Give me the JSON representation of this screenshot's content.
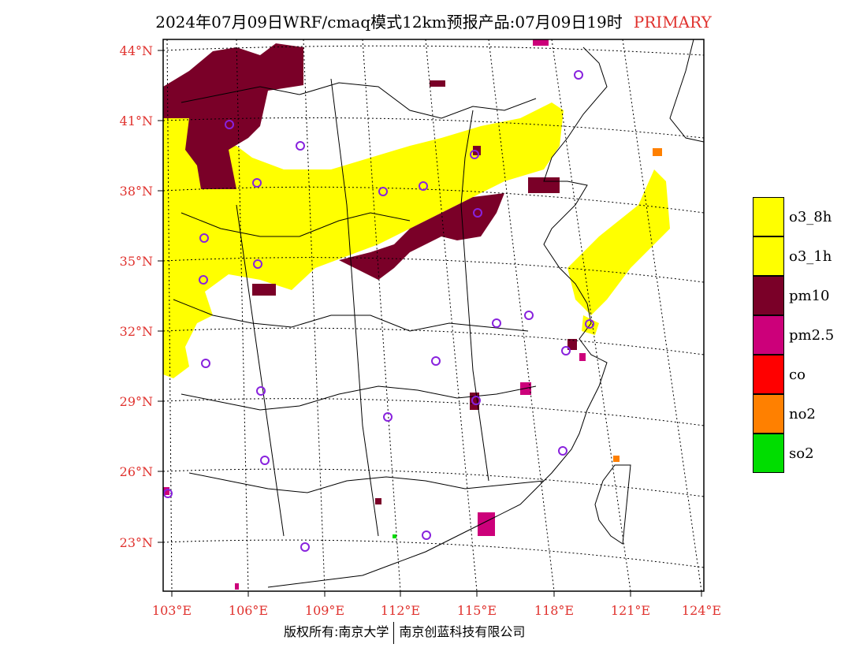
{
  "title": {
    "text": "2024年07月09日WRF/cmaq模式12km预报产品:07月09日19时",
    "tag": "PRIMARY"
  },
  "lat_labels": [
    "44°N",
    "41°N",
    "38°N",
    "35°N",
    "32°N",
    "29°N",
    "26°N",
    "23°N"
  ],
  "lon_labels": [
    "103°E",
    "106°E",
    "109°E",
    "112°E",
    "115°E",
    "118°E",
    "121°E",
    "124°E"
  ],
  "legend": [
    {
      "label": "o3_8h",
      "color": "#ffff00"
    },
    {
      "label": "o3_1h",
      "color": "#ffff00"
    },
    {
      "label": "pm10",
      "color": "#7a0028"
    },
    {
      "label": "pm2.5",
      "color": "#cc007a"
    },
    {
      "label": "co",
      "color": "#ff0000"
    },
    {
      "label": "no2",
      "color": "#ff8000"
    },
    {
      "label": "so2",
      "color": "#00dd00"
    }
  ],
  "footer": {
    "left": "版权所有:南京大学",
    "right": "南京创蓝科技有限公司"
  }
}
